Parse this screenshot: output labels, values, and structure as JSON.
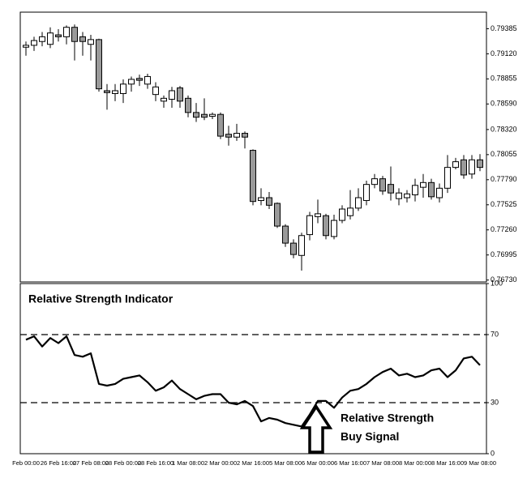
{
  "chart_data": [
    {
      "type": "candlestick",
      "up_color": "#ffffff",
      "down_color": "#9a9a9a",
      "open": [
        0.7919,
        0.7921,
        0.7925,
        0.7922,
        0.7932,
        0.793,
        0.794,
        0.793,
        0.7922,
        0.7927,
        0.7873,
        0.787,
        0.787,
        0.788,
        0.7886,
        0.788,
        0.7869,
        0.7862,
        0.7864,
        0.7876,
        0.7865,
        0.785,
        0.7848,
        0.7846,
        0.7848,
        0.7827,
        0.7824,
        0.7828,
        0.781,
        0.7757,
        0.776,
        0.7754,
        0.773,
        0.7712,
        0.7699,
        0.7721,
        0.774,
        0.7741,
        0.7719,
        0.7736,
        0.7741,
        0.7749,
        0.7757,
        0.7774,
        0.778,
        0.7774,
        0.7759,
        0.776,
        0.7763,
        0.7771,
        0.7776,
        0.776,
        0.777,
        0.7792,
        0.78,
        0.7785,
        0.78
      ],
      "high": [
        0.7925,
        0.793,
        0.7935,
        0.794,
        0.7938,
        0.7942,
        0.7943,
        0.7935,
        0.7932,
        0.7928,
        0.788,
        0.788,
        0.7885,
        0.7888,
        0.789,
        0.7891,
        0.7882,
        0.7868,
        0.7877,
        0.7878,
        0.7868,
        0.786,
        0.7865,
        0.785,
        0.785,
        0.7836,
        0.7838,
        0.783,
        0.7811,
        0.777,
        0.7766,
        0.7755,
        0.7732,
        0.7716,
        0.7723,
        0.7745,
        0.7758,
        0.7743,
        0.7742,
        0.7752,
        0.7768,
        0.777,
        0.7778,
        0.7785,
        0.7783,
        0.7793,
        0.777,
        0.7768,
        0.778,
        0.7785,
        0.778,
        0.7775,
        0.7805,
        0.7802,
        0.7805,
        0.7805,
        0.7806
      ],
      "low": [
        0.791,
        0.7915,
        0.792,
        0.7918,
        0.7925,
        0.7922,
        0.7905,
        0.791,
        0.7905,
        0.7872,
        0.7853,
        0.7862,
        0.786,
        0.7872,
        0.7878,
        0.7875,
        0.7862,
        0.7855,
        0.7855,
        0.7855,
        0.7845,
        0.784,
        0.7842,
        0.7843,
        0.7822,
        0.7815,
        0.782,
        0.7812,
        0.7752,
        0.7752,
        0.7748,
        0.7728,
        0.7708,
        0.7696,
        0.7683,
        0.7715,
        0.7733,
        0.7716,
        0.7716,
        0.7733,
        0.7737,
        0.7746,
        0.7752,
        0.777,
        0.7763,
        0.7757,
        0.7752,
        0.7755,
        0.7756,
        0.776,
        0.7758,
        0.7755,
        0.7765,
        0.779,
        0.778,
        0.778,
        0.7788
      ],
      "close": [
        0.7921,
        0.7926,
        0.793,
        0.7934,
        0.793,
        0.794,
        0.7925,
        0.7925,
        0.7927,
        0.7875,
        0.7871,
        0.7873,
        0.788,
        0.7885,
        0.7884,
        0.7888,
        0.7877,
        0.7865,
        0.7873,
        0.7862,
        0.785,
        0.7845,
        0.7845,
        0.7848,
        0.7825,
        0.7824,
        0.7828,
        0.7824,
        0.7756,
        0.776,
        0.7752,
        0.773,
        0.7712,
        0.77,
        0.772,
        0.7741,
        0.7743,
        0.772,
        0.7736,
        0.7748,
        0.7749,
        0.776,
        0.7774,
        0.778,
        0.7767,
        0.7765,
        0.7765,
        0.7764,
        0.7773,
        0.7776,
        0.7761,
        0.777,
        0.7792,
        0.7798,
        0.7784,
        0.78,
        0.7792
      ],
      "ylim": [
        0.7671,
        0.7956
      ],
      "yticks": [
        0.79385,
        {
          "value": 0.7912,
          "label": "0.79120"
        },
        0.78855,
        {
          "value": 0.7859,
          "label": "0.78590"
        },
        {
          "value": 0.7832,
          "label": "0.78320"
        },
        0.78055,
        {
          "value": 0.7779,
          "label": "0.77790"
        },
        0.77525,
        {
          "value": 0.7726,
          "label": "0.77260"
        },
        0.76995,
        {
          "value": 0.7673,
          "label": "0.76730"
        }
      ]
    },
    {
      "type": "line",
      "title": "Relative Strength Indicator",
      "annotation": [
        "Relative Strength",
        "Buy Signal"
      ],
      "color": "#000000",
      "categories": [
        "Feb 00:00",
        null,
        null,
        null,
        "26 Feb 16:00",
        null,
        null,
        null,
        "27 Feb 08:00",
        null,
        null,
        null,
        "28 Feb 00:00",
        null,
        null,
        null,
        "28 Feb 16:00",
        null,
        null,
        null,
        "1 Mar 08:00",
        null,
        null,
        null,
        "2 Mar 00:00",
        null,
        null,
        null,
        "2 Mar 16:00",
        null,
        null,
        null,
        "5 Mar 08:00",
        null,
        null,
        null,
        "6 Mar 00:00",
        null,
        null,
        null,
        "6 Mar 16:00",
        null,
        null,
        null,
        "7 Mar 08:00",
        null,
        null,
        null,
        "8 Mar 00:00",
        null,
        null,
        null,
        "8 Mar 16:00",
        null,
        null,
        null,
        "9 Mar 08:00"
      ],
      "values": [
        67,
        69,
        63,
        68,
        65,
        69,
        58,
        57,
        59,
        41,
        40,
        41,
        44,
        45,
        46,
        42,
        37,
        39,
        43,
        38,
        35,
        32,
        34,
        35,
        35,
        30,
        29,
        31,
        28,
        19,
        21,
        20,
        18,
        17,
        16,
        23,
        31,
        31,
        27,
        33,
        37,
        38,
        41,
        45,
        48,
        50,
        46,
        47,
        45,
        46,
        49,
        50,
        45,
        49,
        56,
        57,
        52
      ],
      "ylim": [
        0,
        100
      ],
      "yticks": [
        0,
        30,
        70,
        100
      ],
      "dashed_levels": [
        30,
        70
      ]
    }
  ]
}
